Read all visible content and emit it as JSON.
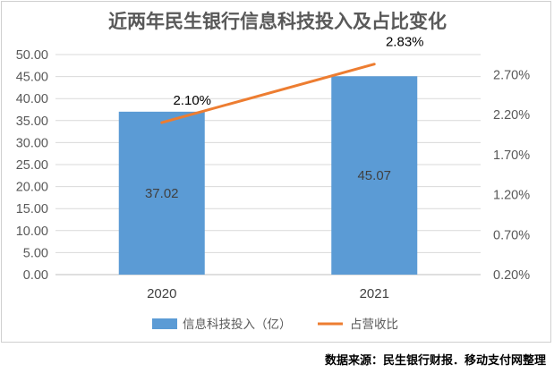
{
  "chart_data": {
    "type": "bar",
    "title": "近两年民生银行信息科技投入及占比变化",
    "categories": [
      "2020",
      "2021"
    ],
    "series": [
      {
        "name": "信息科技投入（亿）",
        "type": "bar",
        "axis": "left",
        "values": [
          37.02,
          45.07
        ],
        "labels": [
          "37.02",
          "45.07"
        ],
        "color": "#5b9bd5"
      },
      {
        "name": "占营收比",
        "type": "line",
        "axis": "right",
        "values": [
          2.1,
          2.83
        ],
        "labels": [
          "2.10%",
          "2.83%"
        ],
        "color": "#ed7d31"
      }
    ],
    "y_left": {
      "ylim": [
        0,
        50
      ],
      "ticks": [
        "0.00",
        "5.00",
        "10.00",
        "15.00",
        "20.00",
        "25.00",
        "30.00",
        "35.00",
        "40.00",
        "45.00",
        "50.00"
      ]
    },
    "y_right": {
      "ylim": [
        0.2,
        2.95
      ],
      "tick_values": [
        0.2,
        0.7,
        1.2,
        1.7,
        2.2,
        2.7
      ],
      "ticks": [
        "0.20%",
        "0.70%",
        "1.20%",
        "1.70%",
        "2.20%",
        "2.70%"
      ]
    },
    "grid": true,
    "legend": "bottom"
  },
  "source": "数据来源：民生银行财报．移动支付网整理"
}
